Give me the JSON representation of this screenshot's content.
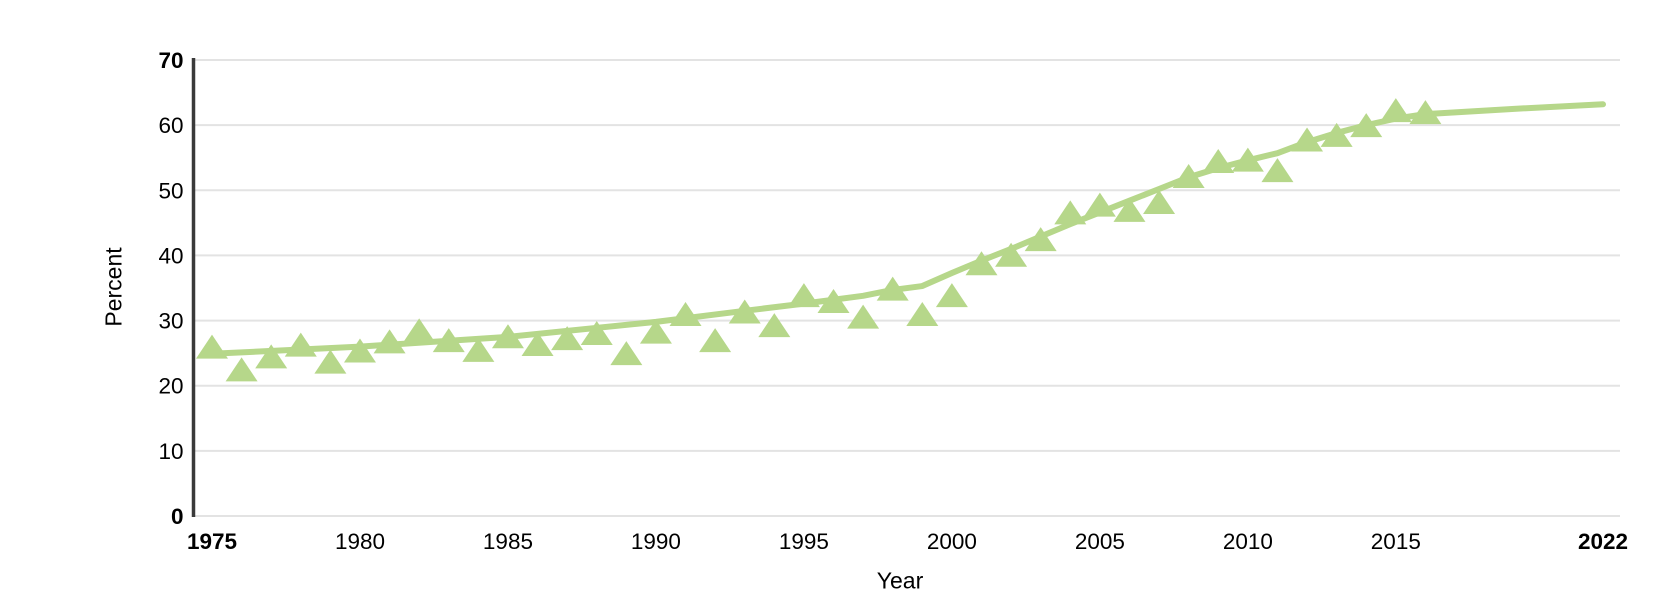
{
  "chart_data": {
    "type": "line",
    "title": "",
    "xlabel": "Year",
    "ylabel": "Percent",
    "xlim": [
      1974.3,
      2022.6
    ],
    "ylim": [
      0,
      70
    ],
    "grid": "horizontal-only",
    "legend": "none",
    "x_ticks": [
      1975,
      1980,
      1985,
      1990,
      1995,
      2000,
      2005,
      2010,
      2015,
      2022
    ],
    "y_ticks": [
      0,
      10,
      20,
      30,
      40,
      50,
      60,
      70
    ],
    "bold_x_ticks": [
      1975,
      2022
    ],
    "bold_y_ticks": [
      0,
      70
    ],
    "series": [
      {
        "name": "annual-values",
        "style": "triangle-markers",
        "x": [
          1975,
          1976,
          1977,
          1978,
          1979,
          1980,
          1981,
          1982,
          1983,
          1984,
          1985,
          1986,
          1987,
          1988,
          1989,
          1990,
          1991,
          1992,
          1993,
          1994,
          1995,
          1996,
          1997,
          1998,
          1999,
          2000,
          2001,
          2002,
          2003,
          2004,
          2005,
          2006,
          2007,
          2008,
          2009,
          2010,
          2011,
          2012,
          2013,
          2014,
          2015,
          2016
        ],
        "values": [
          26.0,
          22.5,
          24.5,
          26.3,
          23.7,
          25.4,
          26.8,
          28.5,
          27.0,
          25.5,
          27.6,
          26.4,
          27.3,
          28.1,
          25.0,
          28.3,
          31.0,
          27.0,
          31.4,
          29.3,
          33.9,
          33.0,
          30.6,
          34.9,
          31.0,
          33.9,
          38.8,
          40.1,
          42.5,
          46.6,
          47.8,
          47.0,
          48.2,
          52.2,
          54.5,
          54.7,
          53.1,
          57.8,
          58.5,
          60.0,
          62.3,
          62.0
        ]
      },
      {
        "name": "trend-line",
        "style": "smooth-line",
        "x": [
          1975,
          1980,
          1985,
          1990,
          1993,
          1995,
          1997,
          1998,
          1999,
          2000,
          2001,
          2002,
          2003,
          2004,
          2005,
          2006,
          2007,
          2008,
          2009,
          2010,
          2011,
          2012,
          2013,
          2014,
          2015,
          2016,
          2019,
          2022
        ],
        "values": [
          24.9,
          26.0,
          27.5,
          29.8,
          31.5,
          32.6,
          33.8,
          34.7,
          35.3,
          37.3,
          39.2,
          41.0,
          42.9,
          44.8,
          46.6,
          48.4,
          50.2,
          52.0,
          53.4,
          54.6,
          55.7,
          57.4,
          58.8,
          60.0,
          61.0,
          61.7,
          62.5,
          63.2
        ]
      }
    ],
    "colors": {
      "series_green": "#b6d78a",
      "gridline": "#e3e3e3",
      "axis_line": "#3a3a3a",
      "text": "#000000",
      "background": "#ffffff"
    }
  }
}
